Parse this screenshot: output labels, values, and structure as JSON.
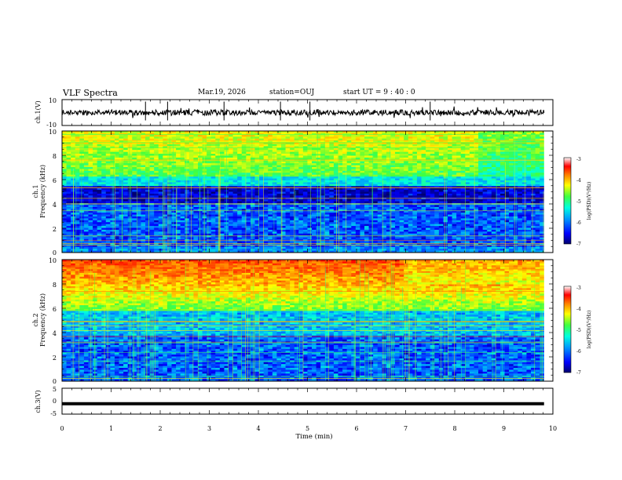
{
  "header": {
    "title": "VLF Spectra",
    "date": "Mar.19, 2026",
    "station": "station=OUJ",
    "start": "start  UT =   9 : 40 : 0"
  },
  "colors": {
    "waveform": "#000000",
    "colormap": [
      "#00006e",
      "#0000ff",
      "#0090ff",
      "#00ffe0",
      "#40ff40",
      "#ffff00",
      "#ff8000",
      "#ff0000",
      "#ffffff"
    ]
  },
  "chart_data": [
    {
      "type": "line",
      "panel": "ch1-waveform",
      "ylabel": "ch.1(V)",
      "ylim": [
        -10,
        10
      ],
      "y_ticks": [
        "10",
        "-10"
      ],
      "xlim": [
        0,
        10
      ],
      "description_level": 0
    },
    {
      "type": "heatmap",
      "panel": "ch1-spectrogram",
      "ylabel": "ch.1\nFrequency (kHz)",
      "ylabel_line1": "ch.1",
      "ylabel_line2": "Frequency (kHz)",
      "ylim": [
        0,
        10
      ],
      "y_ticks": [
        "0",
        "2",
        "4",
        "6",
        "8",
        "10"
      ],
      "xlim": [
        0,
        10
      ],
      "colorbar": {
        "label": "log(PSD)(V²/Hz)",
        "ticks": [
          "-3",
          "-4",
          "-5",
          "-6",
          "-7"
        ],
        "range": [
          -7,
          -3
        ]
      }
    },
    {
      "type": "heatmap",
      "panel": "ch2-spectrogram",
      "ylabel_line1": "ch.2",
      "ylabel_line2": "Frequency (kHz)",
      "ylim": [
        0,
        10
      ],
      "y_ticks": [
        "0",
        "2",
        "4",
        "6",
        "8",
        "10"
      ],
      "xlim": [
        0,
        10
      ],
      "colorbar": {
        "label": "log(PSD)(V²/Hz)",
        "ticks": [
          "-3",
          "-4",
          "-5",
          "-6",
          "-7"
        ],
        "range": [
          -7,
          -3
        ]
      }
    },
    {
      "type": "line",
      "panel": "ch3-waveform",
      "ylabel": "ch.3(V)",
      "ylim": [
        -5,
        5
      ],
      "y_ticks": [
        "5",
        "0",
        "-5"
      ],
      "xlim": [
        0,
        10
      ],
      "level": -1
    }
  ],
  "xaxis": {
    "label": "Time  (min)",
    "ticks": [
      "0",
      "1",
      "2",
      "3",
      "4",
      "5",
      "6",
      "7",
      "8",
      "9",
      "10"
    ],
    "data_end": 9.82
  }
}
